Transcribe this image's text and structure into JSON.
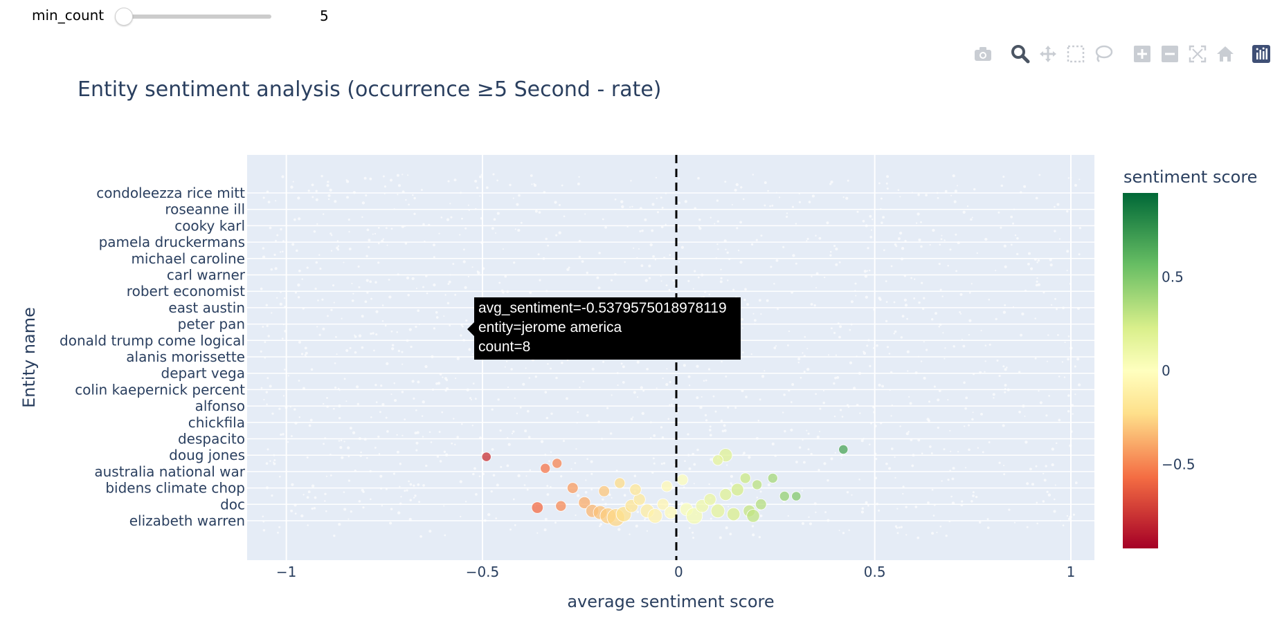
{
  "slider": {
    "label": "min_count",
    "value": "5",
    "min": 5
  },
  "modebar": [
    {
      "name": "camera-icon"
    },
    {
      "name": "zoom-icon",
      "active": true
    },
    {
      "name": "pan-icon"
    },
    {
      "name": "box-select-icon"
    },
    {
      "name": "lasso-select-icon"
    },
    {
      "name": "zoom-in-icon"
    },
    {
      "name": "zoom-out-icon"
    },
    {
      "name": "autoscale-icon"
    },
    {
      "name": "reset-axes-icon"
    },
    {
      "name": "plotly-logo-icon"
    }
  ],
  "tooltip": {
    "line1": "avg_sentiment=-0.5379575018978119",
    "line2": "entity=jerome america",
    "line3": "count=8"
  },
  "chart_data": {
    "type": "scatter",
    "title": "Entity sentiment analysis (occurrence ≥5 Second - rate)",
    "xlabel": "average sentiment score",
    "ylabel": "Entity name",
    "xlim": [
      -1.1,
      1.06
    ],
    "xticks": [
      -1,
      -0.5,
      0,
      0.5,
      1
    ],
    "xtick_labels": [
      "−1",
      "−0.5",
      "0",
      "0.5",
      "1"
    ],
    "reference_line": {
      "x": 0,
      "style": "dashed"
    },
    "categories": [
      "condoleezza rice mitt",
      "roseanne ill",
      "cooky karl",
      "pamela druckermans",
      "michael caroline",
      "carl warner",
      "robert economist",
      "east austin",
      "peter pan",
      "donald trump come logical",
      "alanis morissette",
      "depart vega",
      "colin kaepernick percent",
      "alfonso",
      "chickfila",
      "despacito",
      "doug jones",
      "australia national war",
      "bidens climate chop",
      "doc",
      "elizabeth warren"
    ],
    "colorbar": {
      "title": "sentiment score",
      "range": [
        -0.95,
        0.95
      ],
      "ticks": [
        0.5,
        0,
        -0.5
      ],
      "tick_labels": [
        "0.5",
        "0",
        "−0.5"
      ],
      "colorscale": "RdYlGn"
    },
    "grid": true,
    "points": [
      {
        "x": -0.49,
        "y": 3.9,
        "count": 5
      },
      {
        "x": -0.34,
        "y": 3.2,
        "count": 6
      },
      {
        "x": -0.31,
        "y": 3.5,
        "count": 6
      },
      {
        "x": -0.36,
        "y": 0.8,
        "count": 9
      },
      {
        "x": -0.3,
        "y": 0.9,
        "count": 7
      },
      {
        "x": -0.27,
        "y": 2.0,
        "count": 8
      },
      {
        "x": -0.24,
        "y": 1.1,
        "count": 10
      },
      {
        "x": -0.22,
        "y": 0.6,
        "count": 12
      },
      {
        "x": -0.2,
        "y": 0.5,
        "count": 14
      },
      {
        "x": -0.18,
        "y": 0.3,
        "count": 20
      },
      {
        "x": -0.16,
        "y": 0.2,
        "count": 26
      },
      {
        "x": -0.14,
        "y": 0.4,
        "count": 18
      },
      {
        "x": -0.12,
        "y": 0.9,
        "count": 12
      },
      {
        "x": -0.1,
        "y": 1.3,
        "count": 10
      },
      {
        "x": -0.08,
        "y": 0.6,
        "count": 14
      },
      {
        "x": -0.06,
        "y": 0.3,
        "count": 16
      },
      {
        "x": -0.04,
        "y": 1.0,
        "count": 9
      },
      {
        "x": -0.02,
        "y": 0.5,
        "count": 11
      },
      {
        "x": -0.19,
        "y": 1.8,
        "count": 8
      },
      {
        "x": -0.15,
        "y": 2.3,
        "count": 7
      },
      {
        "x": -0.11,
        "y": 1.9,
        "count": 9
      },
      {
        "x": 0.02,
        "y": 0.7,
        "count": 12
      },
      {
        "x": 0.04,
        "y": 0.3,
        "count": 22
      },
      {
        "x": 0.06,
        "y": 0.9,
        "count": 12
      },
      {
        "x": 0.08,
        "y": 1.3,
        "count": 10
      },
      {
        "x": 0.1,
        "y": 0.6,
        "count": 14
      },
      {
        "x": 0.12,
        "y": 1.6,
        "count": 10
      },
      {
        "x": 0.14,
        "y": 0.4,
        "count": 12
      },
      {
        "x": 0.15,
        "y": 1.9,
        "count": 11
      },
      {
        "x": 0.18,
        "y": 0.6,
        "count": 10
      },
      {
        "x": 0.19,
        "y": 0.3,
        "count": 12
      },
      {
        "x": 0.21,
        "y": 1.0,
        "count": 8
      },
      {
        "x": 0.12,
        "y": 4.0,
        "count": 13
      },
      {
        "x": 0.1,
        "y": 3.7,
        "count": 7
      },
      {
        "x": 0.17,
        "y": 2.6,
        "count": 7
      },
      {
        "x": 0.2,
        "y": 2.2,
        "count": 6
      },
      {
        "x": 0.24,
        "y": 2.6,
        "count": 6
      },
      {
        "x": 0.27,
        "y": 1.5,
        "count": 6
      },
      {
        "x": 0.3,
        "y": 1.5,
        "count": 5
      },
      {
        "x": 0.42,
        "y": 4.35,
        "count": 5
      },
      {
        "x": 0.01,
        "y": 2.5,
        "count": 8
      },
      {
        "x": -0.03,
        "y": 2.1,
        "count": 8
      }
    ]
  }
}
